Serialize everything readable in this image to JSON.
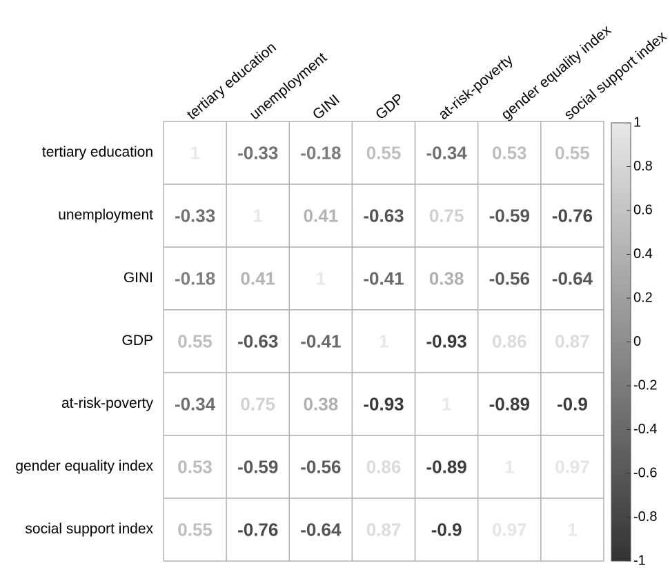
{
  "chart_data": {
    "type": "heatmap",
    "categories": [
      "tertiary education",
      "unemployment",
      "GINI",
      "GDP",
      "at-risk-poverty",
      "gender equality index",
      "social support index"
    ],
    "values": [
      [
        1,
        -0.33,
        -0.18,
        0.55,
        -0.34,
        0.53,
        0.55
      ],
      [
        -0.33,
        1,
        0.41,
        -0.63,
        0.75,
        -0.59,
        -0.76
      ],
      [
        -0.18,
        0.41,
        1,
        -0.41,
        0.38,
        -0.56,
        -0.64
      ],
      [
        0.55,
        -0.63,
        -0.41,
        1,
        -0.93,
        0.86,
        0.87
      ],
      [
        -0.34,
        0.75,
        0.38,
        -0.93,
        1,
        -0.89,
        -0.9
      ],
      [
        0.53,
        -0.59,
        -0.56,
        0.86,
        -0.89,
        1,
        0.97
      ],
      [
        0.55,
        -0.76,
        -0.64,
        0.87,
        -0.9,
        0.97,
        1
      ]
    ],
    "zlim": [
      -1,
      1
    ],
    "zticks": [
      1,
      0.8,
      0.6,
      0.4,
      0.2,
      0,
      -0.2,
      -0.4,
      -0.6,
      -0.8,
      -1
    ],
    "color_low": "#333333",
    "color_high": "#e8e8e8"
  }
}
